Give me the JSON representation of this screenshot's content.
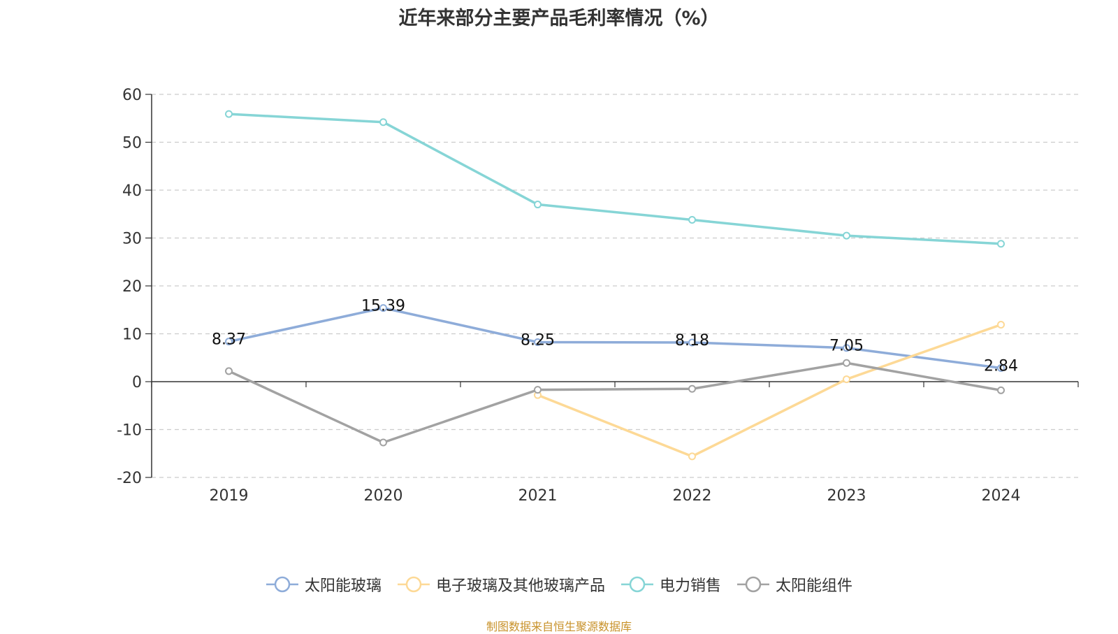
{
  "chart_data": {
    "type": "line",
    "title": "近年来部分主要产品毛利率情况（%）",
    "categories": [
      "2019",
      "2020",
      "2021",
      "2022",
      "2023",
      "2024"
    ],
    "ylim": [
      -20,
      60
    ],
    "yticks": [
      60,
      50,
      40,
      30,
      20,
      10,
      0,
      -10,
      -20
    ],
    "grid": true,
    "legend_position": "bottom",
    "series": [
      {
        "name": "太阳能玻璃",
        "color": "#8eacd9",
        "values": [
          8.37,
          15.39,
          8.25,
          8.18,
          7.05,
          2.84
        ],
        "labels": [
          "8.37",
          "15.39",
          "8.25",
          "8.18",
          "7.05",
          "2.84"
        ]
      },
      {
        "name": "电子玻璃及其他玻璃产品",
        "color": "#fdd996",
        "values": [
          null,
          null,
          -2.8,
          -15.6,
          0.5,
          11.9
        ]
      },
      {
        "name": "电力销售",
        "color": "#86d5d6",
        "values": [
          55.9,
          54.2,
          37.0,
          33.8,
          30.5,
          28.8
        ]
      },
      {
        "name": "太阳能组件",
        "color": "#a2a2a2",
        "values": [
          2.2,
          -12.7,
          -1.7,
          -1.5,
          3.9,
          -1.8
        ]
      }
    ]
  },
  "source_note": "制图数据来自恒生聚源数据库"
}
